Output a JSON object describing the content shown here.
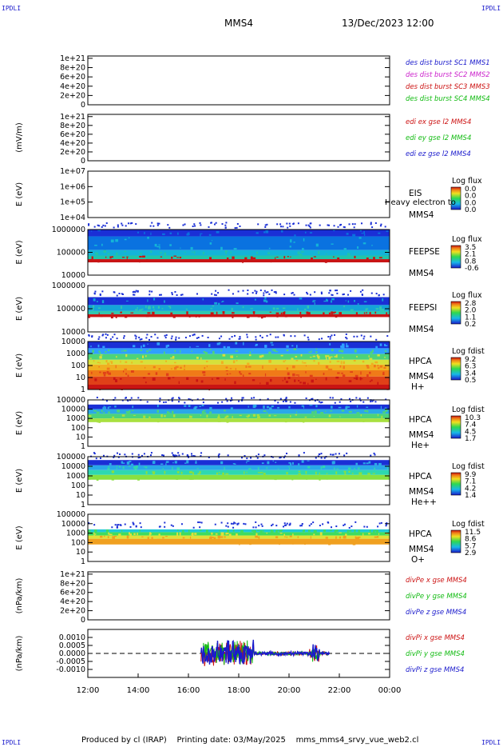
{
  "header": {
    "corner_tl": "IPDLI",
    "corner_tr": "IPDLI",
    "corner_bl": "IPDLI",
    "corner_br": "IPDLI",
    "spacecraft": "MMS4",
    "datetime": "13/Dec/2023 12:00"
  },
  "footer": {
    "produced_by": "Produced by  cl (IRAP)",
    "printing_date": "Printing date: 03/May/2025",
    "script": "mms_mms4_srvy_vue_web2.cl"
  },
  "overlay_text": "Heavy electron to",
  "colors": {
    "blue": "#1a1acc",
    "magenta": "#cc22cc",
    "red": "#cc1111",
    "green": "#11bb11"
  },
  "chart_data": [
    {
      "type": "line",
      "ylabel": "",
      "yticks": [
        "1e+21",
        "8e+20",
        "6e+20",
        "4e+20",
        "2e+20",
        "0"
      ],
      "yvalues": [
        1e+21,
        8e+20,
        6e+20,
        4e+20,
        2e+20,
        0
      ],
      "ylim": [
        0,
        1.05e+21
      ],
      "zero_line": true,
      "series": [
        {
          "name": "des dist burst SC1 MMS1",
          "color": "#1a1acc"
        },
        {
          "name": "des dist burst SC2 MMS2",
          "color": "#cc22cc"
        },
        {
          "name": "des dist burst SC3 MMS3",
          "color": "#cc1111"
        },
        {
          "name": "des dist burst SC4 MMS4",
          "color": "#11bb11"
        }
      ]
    },
    {
      "type": "line",
      "ylabel": "(mV/m)",
      "yticks": [
        "1e+21",
        "8e+20",
        "6e+20",
        "4e+20",
        "2e+20",
        "0"
      ],
      "yvalues": [
        1e+21,
        8e+20,
        6e+20,
        4e+20,
        2e+20,
        0
      ],
      "ylim": [
        0,
        1.05e+21
      ],
      "zero_line": true,
      "series": [
        {
          "name": "edi ex gse l2 MMS4",
          "color": "#cc1111"
        },
        {
          "name": "edi ey gse l2 MMS4",
          "color": "#11bb11"
        },
        {
          "name": "edi ez gse l2 MMS4",
          "color": "#1a1acc"
        }
      ]
    },
    {
      "type": "heatmap",
      "ylabel": "E (eV)",
      "yticks": [
        "1e+07",
        "1e+06",
        "1e+05",
        "1e+04"
      ],
      "log_y": true,
      "ylim": [
        10000,
        10000000
      ],
      "instrument": [
        "EIS",
        "MMS4"
      ],
      "colorbar_title": "Log flux",
      "colorbar_ticks": [
        "0.0",
        "0.0",
        "0.0",
        "0.0"
      ],
      "bands": []
    },
    {
      "type": "heatmap",
      "ylabel": "E (eV)",
      "yticks": [
        "1000000",
        "100000",
        "10000"
      ],
      "log_y": true,
      "ylim": [
        10000,
        1000000
      ],
      "instrument": [
        "FEEPSE",
        "MMS4"
      ],
      "colorbar_title": "Log flux",
      "colorbar_ticks": [
        "3.5",
        "2.1",
        "0.8",
        "-0.6"
      ],
      "bands": [
        {
          "from": 0.85,
          "to": 1.0,
          "color": "#1a2fd6"
        },
        {
          "from": 0.55,
          "to": 0.85,
          "color": "#0a72e0"
        },
        {
          "from": 0.43,
          "to": 0.55,
          "color": "#14b4d8"
        },
        {
          "from": 0.35,
          "to": 0.43,
          "color": "#22c4a8"
        },
        {
          "from": 0.28,
          "to": 0.35,
          "color": "#c81414"
        }
      ]
    },
    {
      "type": "heatmap",
      "ylabel": "E (eV)",
      "yticks": [
        "1000000",
        "100000",
        "10000"
      ],
      "log_y": true,
      "ylim": [
        10000,
        1000000
      ],
      "instrument": [
        "FEEPSI",
        "MMS4"
      ],
      "colorbar_title": "Log flux",
      "colorbar_ticks": [
        "2.8",
        "2.0",
        "1.1",
        "0.2"
      ],
      "bands": [
        {
          "from": 0.58,
          "to": 0.75,
          "color": "#1a2fd6"
        },
        {
          "from": 0.45,
          "to": 0.58,
          "color": "#14a4d8"
        },
        {
          "from": 0.38,
          "to": 0.45,
          "color": "#30c8b0"
        },
        {
          "from": 0.32,
          "to": 0.38,
          "color": "#c81414"
        }
      ]
    },
    {
      "type": "heatmap",
      "ylabel": "E (eV)",
      "yticks": [
        "10000",
        "1000",
        "100",
        "10",
        "1"
      ],
      "log_y": true,
      "ylim": [
        1,
        30000
      ],
      "instrument": [
        "HPCA",
        "MMS4",
        "H+"
      ],
      "colorbar_title": "Log fdist",
      "colorbar_ticks": [
        "9.2",
        "6.3",
        "3.4",
        "0.5"
      ],
      "bands": [
        {
          "from": 0.86,
          "to": 1.0,
          "color": "#1a2fd6"
        },
        {
          "from": 0.74,
          "to": 0.86,
          "color": "#2fa0ff"
        },
        {
          "from": 0.62,
          "to": 0.74,
          "color": "#4cd37a"
        },
        {
          "from": 0.52,
          "to": 0.62,
          "color": "#d6e03a"
        },
        {
          "from": 0.4,
          "to": 0.52,
          "color": "#f0b020"
        },
        {
          "from": 0.27,
          "to": 0.4,
          "color": "#f07a18"
        },
        {
          "from": 0.1,
          "to": 0.27,
          "color": "#e04018"
        },
        {
          "from": 0.0,
          "to": 0.1,
          "color": "#c81414"
        }
      ]
    },
    {
      "type": "heatmap",
      "ylabel": "E (eV)",
      "yticks": [
        "100000",
        "10000",
        "1000",
        "100",
        "10",
        "1"
      ],
      "log_y": true,
      "ylim": [
        1,
        100000
      ],
      "instrument": [
        "HPCA",
        "MMS4",
        "He+"
      ],
      "colorbar_title": "Log fdist",
      "colorbar_ticks": [
        "10.3",
        "7.4",
        "4.5",
        "1.7"
      ],
      "bands": [
        {
          "from": 0.8,
          "to": 0.9,
          "color": "#1a2fd6"
        },
        {
          "from": 0.7,
          "to": 0.8,
          "color": "#2aa8e8"
        },
        {
          "from": 0.6,
          "to": 0.7,
          "color": "#4cd37a"
        },
        {
          "from": 0.52,
          "to": 0.6,
          "color": "#a8e040"
        }
      ]
    },
    {
      "type": "heatmap",
      "ylabel": "E (eV)",
      "yticks": [
        "100000",
        "10000",
        "1000",
        "100",
        "10",
        "1"
      ],
      "log_y": true,
      "ylim": [
        1,
        100000
      ],
      "instrument": [
        "HPCA",
        "MMS4",
        "He++"
      ],
      "colorbar_title": "Log fdist",
      "colorbar_ticks": [
        "9.9",
        "7.1",
        "4.2",
        "1.4"
      ],
      "bands": [
        {
          "from": 0.82,
          "to": 0.93,
          "color": "#1a2fd6"
        },
        {
          "from": 0.72,
          "to": 0.82,
          "color": "#2aa8e8"
        },
        {
          "from": 0.62,
          "to": 0.72,
          "color": "#2ed8b0"
        },
        {
          "from": 0.52,
          "to": 0.62,
          "color": "#88e040"
        }
      ]
    },
    {
      "type": "heatmap",
      "ylabel": "E (eV)",
      "yticks": [
        "100000",
        "10000",
        "1000",
        "100",
        "10",
        "1"
      ],
      "log_y": true,
      "ylim": [
        1,
        100000
      ],
      "instrument": [
        "HPCA",
        "MMS4",
        "O+"
      ],
      "colorbar_title": "Log fdist",
      "colorbar_ticks": [
        "11.5",
        "8.6",
        "5.7",
        "2.9"
      ],
      "bands": [
        {
          "from": 0.62,
          "to": 0.68,
          "color": "#1fcad8"
        },
        {
          "from": 0.55,
          "to": 0.62,
          "color": "#3fdc60"
        },
        {
          "from": 0.48,
          "to": 0.55,
          "color": "#e0e03a"
        },
        {
          "from": 0.36,
          "to": 0.48,
          "color": "#f0a020"
        }
      ]
    },
    {
      "type": "line",
      "ylabel": "(nPa/km)",
      "yticks": [
        "1e+21",
        "8e+20",
        "6e+20",
        "4e+20",
        "2e+20",
        "0"
      ],
      "yvalues": [
        1e+21,
        8e+20,
        6e+20,
        4e+20,
        2e+20,
        0
      ],
      "ylim": [
        0,
        1.05e+21
      ],
      "zero_line": true,
      "series": [
        {
          "name": "divPe x gse MMS4",
          "color": "#cc1111"
        },
        {
          "name": "divPe y gse MMS4",
          "color": "#11bb11"
        },
        {
          "name": "divPe z gse MMS4",
          "color": "#1a1acc"
        }
      ]
    },
    {
      "type": "line",
      "ylabel": "(nPa/km)",
      "yticks": [
        "0.0010",
        "0.0005",
        "0.0000",
        "-0.0005",
        "-0.0010"
      ],
      "yvalues": [
        0.001,
        0.0005,
        0,
        -0.0005,
        -0.001
      ],
      "ylim": [
        -0.0015,
        0.0015
      ],
      "zero_line": true,
      "active_range_hours": [
        16.5,
        21.6
      ],
      "series": [
        {
          "name": "divPi x gse MMS4",
          "color": "#cc1111"
        },
        {
          "name": "divPi y gse MMS4",
          "color": "#11bb11"
        },
        {
          "name": "divPi z gse MMS4",
          "color": "#1a1acc"
        }
      ]
    }
  ],
  "xaxis": {
    "ticks": [
      "12:00",
      "14:00",
      "16:00",
      "18:00",
      "20:00",
      "22:00",
      "00:00"
    ],
    "hours": [
      12,
      14,
      16,
      18,
      20,
      22,
      24
    ],
    "xlim": [
      12,
      24
    ]
  }
}
